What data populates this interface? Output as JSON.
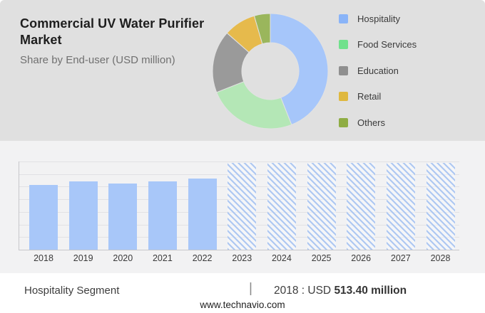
{
  "header": {
    "title": "Commercial UV Water Purifier Market",
    "subtitle": "Share by End-user (USD million)"
  },
  "colors": {
    "header_bg": "#e0e0e0",
    "chart_bg": "#f2f2f3",
    "gridline": "#e1e1e4",
    "axis": "#c7c7cb",
    "hatch_line": "#aec8f2",
    "hatch_gap": "rgba(249,251,254,0.45)"
  },
  "chart_data": [
    {
      "type": "pie",
      "donut": true,
      "title": "Share by End-user (USD million)",
      "legend_position": "right",
      "slices": [
        {
          "label": "Hospitality",
          "share_pct": 44,
          "color": "#a6c6fa",
          "legend_color": "#8ab4f8"
        },
        {
          "label": "Food Services",
          "share_pct": 25,
          "color": "#b4e7b6",
          "legend_color": "#70e18c"
        },
        {
          "label": "Education",
          "share_pct": 17.5,
          "color": "#9a9a9a",
          "legend_color": "#8f8f8f"
        },
        {
          "label": "Retail",
          "share_pct": 9,
          "color": "#e6ba4c",
          "legend_color": "#dfb83f"
        },
        {
          "label": "Others",
          "share_pct": 4.5,
          "color": "#9ab65c",
          "legend_color": "#8fad44"
        }
      ],
      "note": "No numeric labels shown on donut; shares estimated from arc angles."
    },
    {
      "type": "bar",
      "categories": [
        "2018",
        "2019",
        "2020",
        "2021",
        "2022",
        "2023",
        "2024",
        "2025",
        "2026",
        "2027",
        "2028"
      ],
      "values": [
        513.4,
        540,
        524,
        544,
        562,
        null,
        null,
        null,
        null,
        null,
        null
      ],
      "forecast_years": [
        "2023",
        "2024",
        "2025",
        "2026",
        "2027",
        "2028"
      ],
      "bar_color": "#a8c7f9",
      "ylim": [
        0,
        700
      ],
      "gridline_step": 100,
      "ylabel": "",
      "xlabel": "",
      "y_tick_labels_shown": false,
      "note": "Only 2018 value (USD 513.40 million) is stated on the image; 2019-2022 estimated from bar heights against unlabeled gridlines; 2023-2028 are hatched forecast placeholders with no values."
    }
  ],
  "footer": {
    "segment_label": "Hospitality Segment",
    "divider": "|",
    "callout_prefix": "2018 : USD ",
    "callout_value": "513.40 million",
    "website": "www.technavio.com"
  }
}
